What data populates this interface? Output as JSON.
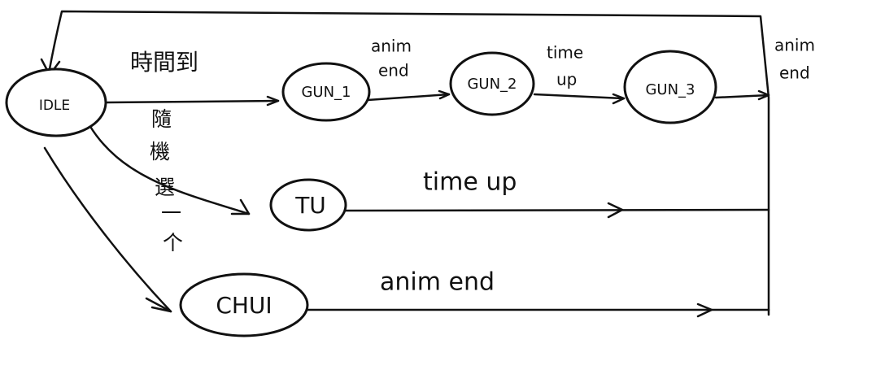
{
  "states": {
    "idle": "IDLE",
    "gun1": "GUN_1",
    "gun2": "GUN_2",
    "gun3": "GUN_3",
    "tu": "TU",
    "chui": "CHUI"
  },
  "transitions": {
    "idle_to_gun1": "時間到",
    "gun1_to_gun2_line1": "anim",
    "gun1_to_gun2_line2": "end",
    "gun2_to_gun3_line1": "time",
    "gun2_to_gun3_line2": "up",
    "gun3_to_idle_line1": "anim",
    "gun3_to_idle_line2": "end",
    "tu_to_idle": "time up",
    "chui_to_idle": "anim end",
    "random_pick": [
      "隨",
      "機",
      "選",
      "一",
      "个"
    ]
  }
}
